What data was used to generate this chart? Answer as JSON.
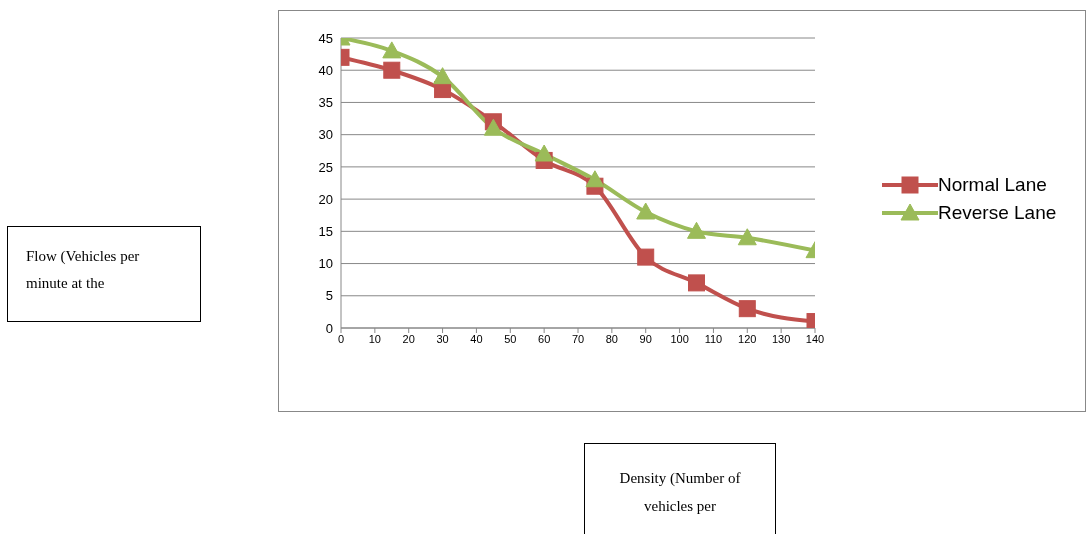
{
  "chart_data": {
    "type": "line",
    "annotations": [
      "Flow (Vehicles per minute at the",
      "Density (Number of vehicles per"
    ],
    "x": [
      0,
      15,
      30,
      45,
      60,
      75,
      90,
      105,
      120,
      140
    ],
    "series": [
      {
        "name": "Normal Lane",
        "color": "#c0504d",
        "marker": "square",
        "values": [
          42,
          40,
          37,
          32,
          26,
          22,
          11,
          7,
          3,
          1
        ]
      },
      {
        "name": "Reverse Lane",
        "color": "#9bbb59",
        "marker": "triangle",
        "values": [
          45,
          43,
          39,
          31,
          27,
          23,
          18,
          15,
          14,
          12
        ]
      }
    ],
    "xlim": [
      0,
      140
    ],
    "xticks": [
      0,
      10,
      20,
      30,
      40,
      50,
      60,
      70,
      80,
      90,
      100,
      110,
      120,
      130,
      140
    ],
    "ylim": [
      0,
      45
    ],
    "yticks": [
      0,
      5,
      10,
      15,
      20,
      25,
      30,
      35,
      40,
      45
    ],
    "grid": "y",
    "legend": "right",
    "line_style": "solid"
  }
}
